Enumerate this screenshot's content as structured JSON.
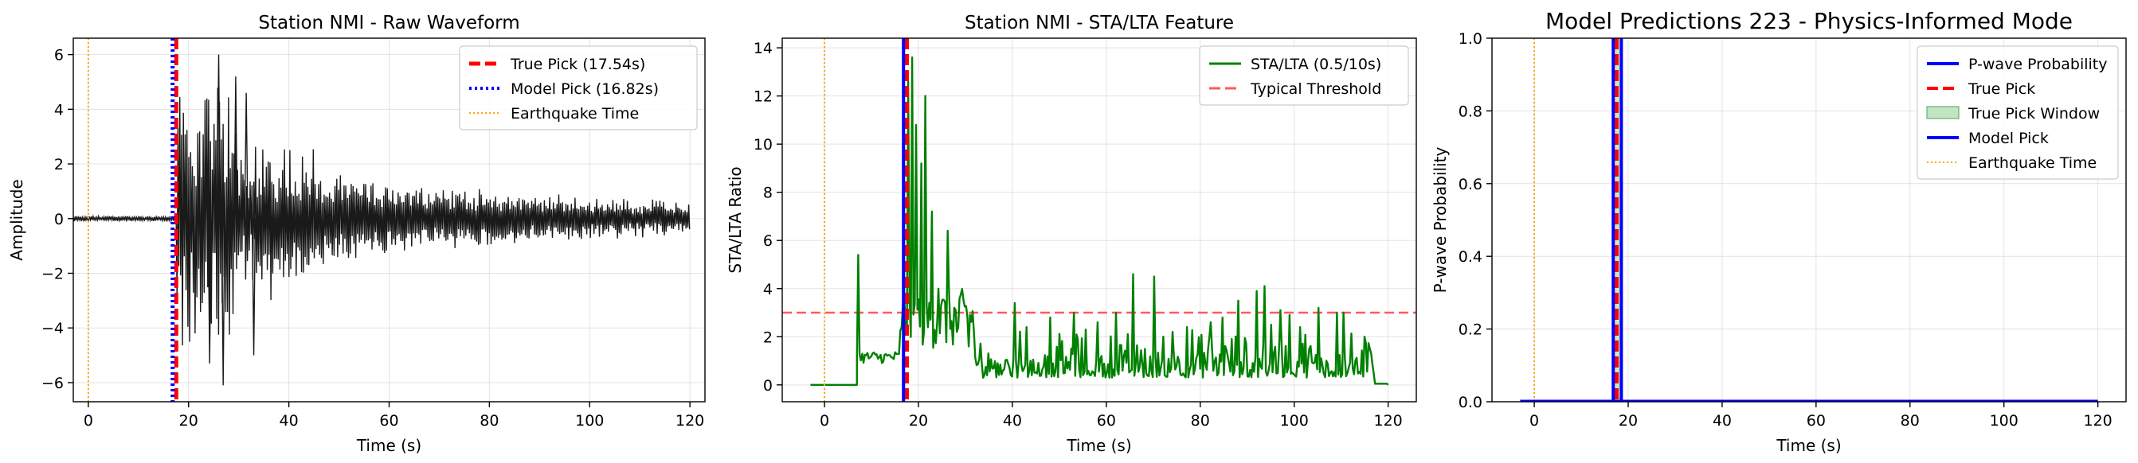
{
  "colors": {
    "waveform": "#1a1a1a",
    "true_pick": "#ff0000",
    "model_pick": "#0000ff",
    "earthquake": "#ffa500",
    "stalta": "#008000",
    "threshold": "#ff5a5a",
    "probability": "#0000ff",
    "pick_window": "#90d090"
  },
  "chart_data": [
    {
      "type": "line",
      "title": "Station NMI - Raw Waveform",
      "xlabel": "Time (s)",
      "ylabel": "Amplitude",
      "xlim": [
        -3,
        123
      ],
      "ylim": [
        -6.7,
        6.6
      ],
      "xticks": [
        0,
        20,
        40,
        60,
        80,
        100,
        120
      ],
      "yticks": [
        -6,
        -4,
        -2,
        0,
        2,
        4,
        6
      ],
      "grid": true,
      "legend_position": "top-right",
      "x_start": -3,
      "x_end": 120,
      "onset": 17.54,
      "vlines": [
        {
          "name": "True Pick (17.54s)",
          "x": 17.54,
          "style": "dashed",
          "color": "#ff0000"
        },
        {
          "name": "Model Pick (16.82s)",
          "x": 16.82,
          "style": "dotted",
          "color": "#0000ff"
        },
        {
          "name": "Earthquake Time",
          "x": 0,
          "style": "dotted-thin",
          "color": "#ffa500"
        }
      ],
      "series": [
        {
          "name": "",
          "color": "#1a1a1a"
        }
      ]
    },
    {
      "type": "line",
      "title": "Station NMI - STA/LTA Feature",
      "xlabel": "Time (s)",
      "ylabel": "STA/LTA Ratio",
      "xlim": [
        -9,
        126
      ],
      "ylim": [
        -0.7,
        14.4
      ],
      "xticks": [
        0,
        20,
        40,
        60,
        80,
        100,
        120
      ],
      "yticks": [
        0,
        2,
        4,
        6,
        8,
        10,
        12,
        14
      ],
      "grid": true,
      "legend_position": "top-right",
      "threshold": 3,
      "spikes": [
        [
          7.0,
          5.4
        ],
        [
          16.2,
          2.4
        ],
        [
          17.8,
          12.6
        ],
        [
          18.6,
          13.6
        ],
        [
          19.4,
          10.8
        ],
        [
          20.4,
          9.2
        ],
        [
          21.3,
          12.0
        ],
        [
          22.6,
          7.2
        ],
        [
          24.0,
          4.0
        ],
        [
          26.2,
          6.4
        ],
        [
          28.0,
          2.2
        ],
        [
          30.5,
          1.6
        ],
        [
          40.5,
          3.4
        ],
        [
          43.0,
          2.4
        ],
        [
          48.0,
          2.8
        ],
        [
          53.0,
          3.0
        ],
        [
          58.0,
          2.6
        ],
        [
          62.0,
          3.0
        ],
        [
          65.5,
          4.6
        ],
        [
          70.0,
          4.5
        ],
        [
          74.0,
          2.2
        ],
        [
          77.0,
          2.4
        ],
        [
          82.0,
          2.6
        ],
        [
          84.5,
          2.8
        ],
        [
          88.0,
          3.5
        ],
        [
          92.0,
          3.9
        ],
        [
          93.5,
          4.1
        ],
        [
          95.0,
          2.5
        ],
        [
          97.0,
          3.1
        ],
        [
          99.0,
          2.9
        ],
        [
          101.0,
          2.4
        ],
        [
          105.0,
          3.2
        ],
        [
          109.0,
          3.0
        ],
        [
          110.5,
          3.0
        ],
        [
          113.0,
          1.0
        ]
      ],
      "vlines": [
        {
          "name": "",
          "x": 17.54,
          "style": "dashed",
          "color": "#ff0000"
        },
        {
          "name": "",
          "x": 16.82,
          "style": "solid",
          "color": "#0000ff"
        },
        {
          "name": "",
          "x": 0,
          "style": "dotted-thin",
          "color": "#ffa500"
        }
      ],
      "series": [
        {
          "name": "STA/LTA (0.5/10s)",
          "color": "#008000"
        },
        {
          "name": "Typical Threshold",
          "color": "#ff5a5a",
          "style": "dashed"
        }
      ]
    },
    {
      "type": "line",
      "title": "Model Predictions 223 - Physics-Informed Mode",
      "xlabel": "Time (s)",
      "ylabel": "P-wave Probability",
      "xlim": [
        -9,
        126
      ],
      "ylim": [
        0,
        1.0
      ],
      "xticks": [
        0,
        20,
        40,
        60,
        80,
        100,
        120
      ],
      "yticks": [
        0.0,
        0.2,
        0.4,
        0.6,
        0.8,
        1.0
      ],
      "grid": true,
      "legend_position": "top-right",
      "probability_x": [
        -3,
        120
      ],
      "probability_y": [
        0,
        0
      ],
      "pick_window": [
        16.54,
        18.54
      ],
      "vlines": [
        {
          "name": "",
          "x": 17.54,
          "style": "dashed",
          "color": "#ff0000"
        },
        {
          "name": "",
          "x": 16.82,
          "style": "solid",
          "color": "#0000ff"
        },
        {
          "name": "",
          "x": 18.54,
          "style": "solid",
          "color": "#0000ff"
        },
        {
          "name": "",
          "x": 0,
          "style": "dotted-thin",
          "color": "#ffa500"
        }
      ],
      "series": [
        {
          "name": "P-wave Probability",
          "color": "#0000ff"
        },
        {
          "name": "True Pick",
          "color": "#ff0000",
          "style": "dashed"
        },
        {
          "name": "True Pick Window",
          "color": "#90d090",
          "style": "patch"
        },
        {
          "name": "Model Pick",
          "color": "#0000ff"
        },
        {
          "name": "Earthquake Time",
          "color": "#ffa500",
          "style": "dotted-thin"
        }
      ]
    }
  ]
}
